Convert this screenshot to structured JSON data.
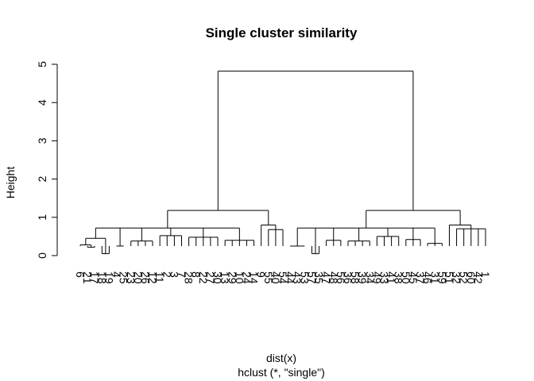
{
  "chart_data": {
    "type": "dendrogram",
    "title": "Single cluster similarity",
    "xlabel": "dist(x)",
    "sublabel": "hclust (*, \"single\")",
    "ylabel": "Height",
    "ylim": [
      0,
      5
    ],
    "yticks": [
      "0",
      "1",
      "2",
      "3",
      "4",
      "5"
    ],
    "grid": false,
    "leaves": [
      "6",
      "21",
      "17",
      "18",
      "19",
      "4",
      "25",
      "23",
      "20",
      "26",
      "12",
      "11",
      "2",
      "3",
      "7",
      "28",
      "8",
      "22",
      "27",
      "30",
      "13",
      "29",
      "10",
      "24",
      "14",
      "9",
      "55",
      "40",
      "54",
      "44",
      "43",
      "53",
      "57",
      "35",
      "47",
      "48",
      "56",
      "36",
      "58",
      "39",
      "34",
      "49",
      "33",
      "41",
      "38",
      "50",
      "45",
      "37",
      "46",
      "31",
      "59",
      "51",
      "32",
      "52",
      "60",
      "42",
      "1"
    ],
    "merges": [
      {
        "height": 4.82
      },
      {
        "height": 1.18
      },
      {
        "height": 1.18
      },
      {
        "height": 0.8
      },
      {
        "height": 0.72
      },
      {
        "height": 0.72
      }
    ]
  }
}
